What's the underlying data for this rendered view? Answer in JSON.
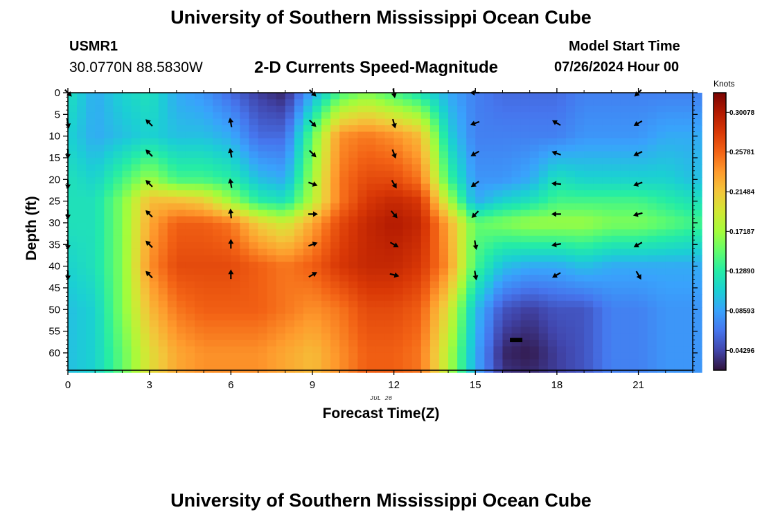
{
  "page": {
    "main_title": "University of Southern Mississippi Ocean Cube",
    "footer_title": "University of Southern Mississippi Ocean Cube"
  },
  "station": {
    "id": "USMR1",
    "coords": "30.0770N  88.5830W"
  },
  "model": {
    "start_label": "Model Start Time",
    "start_value": "07/26/2024 Hour 00"
  },
  "colors": {
    "colormap": [
      "#30123b",
      "#4145ab",
      "#4675ed",
      "#39a2fc",
      "#1bcfd4",
      "#24eca6",
      "#61fc6c",
      "#a4fc3b",
      "#d1e834",
      "#f3c63a",
      "#fe9b2d",
      "#f36315",
      "#d93806",
      "#b11901",
      "#7a0402"
    ],
    "arrow": "#000000"
  },
  "chart_data": {
    "type": "heatmap",
    "title": "2-D Currents Speed-Magnitude",
    "xlabel": "Forecast Time(Z)",
    "ylabel": "Depth (ft)",
    "date_label": "JUL 26",
    "x_ticks": [
      0,
      3,
      6,
      9,
      12,
      15,
      18,
      21
    ],
    "y_ticks": [
      0,
      5,
      10,
      15,
      20,
      25,
      30,
      35,
      40,
      45,
      50,
      55,
      60
    ],
    "xlim": [
      0,
      23
    ],
    "ylim": [
      0,
      64
    ],
    "colorbar": {
      "unit": "Knots",
      "min": 0.0215,
      "max": 0.322,
      "ticks": [
        0.04296,
        0.08593,
        0.1289,
        0.17187,
        0.21484,
        0.25781,
        0.30078
      ],
      "tick_labels": [
        "0.04296",
        "0.08593",
        "0.12890",
        "0.17187",
        "0.21484",
        "0.25781",
        "0.30078"
      ]
    },
    "speed_grid": {
      "x": [
        0,
        1,
        2,
        3,
        4,
        5,
        6,
        7,
        8,
        9,
        10,
        11,
        12,
        13,
        14,
        15,
        16,
        17,
        18,
        19,
        20,
        21,
        22,
        23
      ],
      "depth": [
        0,
        10,
        20,
        25,
        30,
        40,
        50,
        60,
        64
      ],
      "values": [
        [
          0.12,
          0.09,
          0.11,
          0.12,
          0.09,
          0.08,
          0.06,
          0.04,
          0.03,
          0.09,
          0.14,
          0.16,
          0.14,
          0.12,
          0.09,
          0.07,
          0.06,
          0.06,
          0.06,
          0.07,
          0.07,
          0.07,
          0.07,
          0.07
        ],
        [
          0.11,
          0.09,
          0.1,
          0.11,
          0.1,
          0.1,
          0.09,
          0.06,
          0.06,
          0.15,
          0.24,
          0.25,
          0.24,
          0.22,
          0.11,
          0.07,
          0.07,
          0.07,
          0.07,
          0.08,
          0.08,
          0.08,
          0.09,
          0.09
        ],
        [
          0.12,
          0.11,
          0.14,
          0.17,
          0.14,
          0.14,
          0.13,
          0.1,
          0.09,
          0.17,
          0.25,
          0.27,
          0.27,
          0.25,
          0.14,
          0.08,
          0.08,
          0.09,
          0.12,
          0.11,
          0.11,
          0.11,
          0.11,
          0.1
        ],
        [
          0.12,
          0.12,
          0.16,
          0.22,
          0.22,
          0.21,
          0.17,
          0.13,
          0.12,
          0.18,
          0.25,
          0.28,
          0.29,
          0.28,
          0.18,
          0.09,
          0.11,
          0.12,
          0.14,
          0.14,
          0.14,
          0.14,
          0.13,
          0.12
        ],
        [
          0.12,
          0.12,
          0.16,
          0.23,
          0.26,
          0.26,
          0.25,
          0.21,
          0.19,
          0.23,
          0.27,
          0.29,
          0.3,
          0.29,
          0.23,
          0.15,
          0.16,
          0.17,
          0.17,
          0.17,
          0.16,
          0.16,
          0.15,
          0.14
        ],
        [
          0.11,
          0.12,
          0.16,
          0.24,
          0.27,
          0.27,
          0.27,
          0.26,
          0.25,
          0.26,
          0.28,
          0.29,
          0.29,
          0.28,
          0.24,
          0.14,
          0.1,
          0.09,
          0.09,
          0.1,
          0.09,
          0.09,
          0.09,
          0.09
        ],
        [
          0.1,
          0.11,
          0.16,
          0.22,
          0.25,
          0.26,
          0.26,
          0.26,
          0.25,
          0.24,
          0.25,
          0.27,
          0.27,
          0.26,
          0.2,
          0.1,
          0.05,
          0.04,
          0.05,
          0.05,
          0.07,
          0.07,
          0.08,
          0.08
        ],
        [
          0.1,
          0.11,
          0.15,
          0.2,
          0.23,
          0.24,
          0.24,
          0.24,
          0.23,
          0.22,
          0.24,
          0.26,
          0.26,
          0.25,
          0.18,
          0.09,
          0.03,
          0.025,
          0.04,
          0.05,
          0.07,
          0.07,
          0.08,
          0.08
        ],
        [
          0.1,
          0.11,
          0.15,
          0.2,
          0.23,
          0.24,
          0.24,
          0.24,
          0.23,
          0.22,
          0.24,
          0.26,
          0.26,
          0.25,
          0.18,
          0.09,
          0.035,
          0.03,
          0.04,
          0.05,
          0.07,
          0.07,
          0.08,
          0.08
        ]
      ]
    },
    "vectors": {
      "depths": [
        0,
        7,
        14,
        21,
        28,
        35,
        42
      ],
      "columns": [
        {
          "hour": 0,
          "angles": [
            -45,
            -80,
            -90,
            -90,
            -90,
            -90,
            -90
          ]
        },
        {
          "hour": 3,
          "angles": [
            null,
            135,
            135,
            135,
            135,
            135,
            135
          ]
        },
        {
          "hour": 6,
          "angles": [
            null,
            100,
            100,
            100,
            95,
            90,
            90
          ]
        },
        {
          "hour": 9,
          "angles": [
            -45,
            -45,
            -45,
            -20,
            0,
            20,
            30
          ]
        },
        {
          "hour": 12,
          "angles": [
            -80,
            -75,
            -70,
            -60,
            -50,
            -30,
            -15
          ]
        },
        {
          "hour": 15,
          "angles": [
            180,
            200,
            210,
            215,
            225,
            -80,
            -80
          ]
        },
        {
          "hour": 18,
          "angles": [
            null,
            150,
            160,
            175,
            180,
            190,
            210
          ]
        },
        {
          "hour": 21,
          "angles": [
            -135,
            210,
            205,
            200,
            195,
            210,
            -60
          ]
        }
      ]
    },
    "annotation_marker": {
      "x": 16.5,
      "depth": 57
    }
  }
}
